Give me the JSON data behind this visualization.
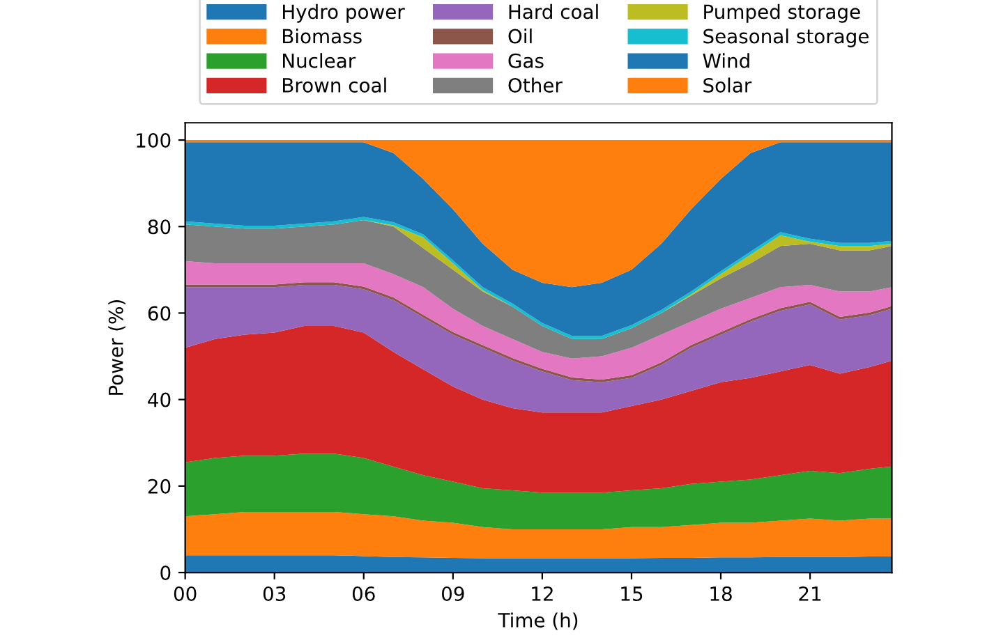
{
  "chart_data": {
    "type": "area",
    "stacked": true,
    "xlabel": "Time (h)",
    "ylabel": "Power (%)",
    "x": [
      0,
      1,
      2,
      3,
      4,
      5,
      6,
      7,
      8,
      9,
      10,
      11,
      12,
      13,
      14,
      15,
      16,
      17,
      18,
      19,
      20,
      21,
      22,
      23,
      23.75
    ],
    "xlim": [
      0,
      23.75
    ],
    "ylim": [
      0,
      104
    ],
    "xticks": [
      {
        "value": 0,
        "label": "00"
      },
      {
        "value": 3,
        "label": "03"
      },
      {
        "value": 6,
        "label": "06"
      },
      {
        "value": 9,
        "label": "09"
      },
      {
        "value": 12,
        "label": "12"
      },
      {
        "value": 15,
        "label": "15"
      },
      {
        "value": 18,
        "label": "18"
      },
      {
        "value": 21,
        "label": "21"
      }
    ],
    "yticks": [
      0,
      20,
      40,
      60,
      80,
      100
    ],
    "legend": "top",
    "grid": false,
    "series": [
      {
        "name": "Hydro power",
        "color": "#1f77b4",
        "values": [
          4,
          4,
          4,
          4,
          4,
          4,
          3.8,
          3.6,
          3.5,
          3.4,
          3.3,
          3.3,
          3.3,
          3.3,
          3.3,
          3.3,
          3.4,
          3.4,
          3.5,
          3.5,
          3.6,
          3.6,
          3.6,
          3.7,
          3.7
        ]
      },
      {
        "name": "Biomass",
        "color": "#ff7f0e",
        "values": [
          9,
          9.5,
          10,
          10,
          10,
          10,
          9.7,
          9.4,
          8.5,
          8.1,
          7.2,
          6.7,
          6.7,
          6.7,
          6.7,
          7.2,
          7.1,
          7.6,
          8,
          8,
          8.4,
          8.9,
          8.4,
          8.8,
          8.8
        ]
      },
      {
        "name": "Nuclear",
        "color": "#2ca02c",
        "values": [
          12.5,
          13,
          13,
          13,
          13.5,
          13.5,
          13,
          11.5,
          10.5,
          9.5,
          9,
          9,
          8.5,
          8.5,
          8.5,
          8.5,
          9,
          9.5,
          9.5,
          10,
          10.5,
          11,
          11,
          11.5,
          12
        ]
      },
      {
        "name": "Brown coal",
        "color": "#d62728",
        "values": [
          26.5,
          27.5,
          28,
          28.5,
          29.5,
          29.5,
          29,
          26.5,
          24.5,
          22,
          20.5,
          19,
          18.5,
          18.5,
          18.5,
          19.5,
          20.5,
          21.5,
          23,
          23.5,
          24,
          24.5,
          23,
          23.5,
          24.5
        ]
      },
      {
        "name": "Hard coal",
        "color": "#9467bd",
        "values": [
          14,
          12,
          11,
          10.5,
          9.5,
          9.5,
          10,
          12,
          12,
          12,
          12,
          11,
          9.5,
          7.5,
          7,
          6.5,
          8,
          10,
          11,
          13,
          14,
          14,
          12.5,
          12,
          12
        ]
      },
      {
        "name": "Oil",
        "color": "#8c564b",
        "values": [
          0.6,
          0.6,
          0.6,
          0.6,
          0.6,
          0.6,
          0.6,
          0.6,
          0.6,
          0.6,
          0.6,
          0.6,
          0.6,
          0.6,
          0.6,
          0.6,
          0.6,
          0.6,
          0.6,
          0.6,
          0.6,
          0.6,
          0.6,
          0.6,
          0.6
        ]
      },
      {
        "name": "Gas",
        "color": "#e377c2",
        "values": [
          5.4,
          4.9,
          4.9,
          4.9,
          4.4,
          4.4,
          5.4,
          5.4,
          6.4,
          5.4,
          4.4,
          4.4,
          3.9,
          4.4,
          5.4,
          6.4,
          6.4,
          5.4,
          5.4,
          4.9,
          4.9,
          3.9,
          5.9,
          4.9,
          4.4
        ]
      },
      {
        "name": "Other",
        "color": "#7f7f7f",
        "values": [
          8.5,
          8.5,
          8,
          8,
          8.5,
          9,
          10,
          11,
          9,
          9,
          8,
          7.5,
          6,
          4.5,
          4,
          4.5,
          5,
          6,
          7,
          8,
          9.5,
          9.5,
          9.5,
          9.5,
          9.5
        ]
      },
      {
        "name": "Pumped storage",
        "color": "#bcbd22",
        "values": [
          0,
          0,
          0,
          0,
          0,
          0,
          0,
          0.3,
          2.5,
          1.5,
          0.3,
          0,
          0,
          0,
          0,
          0,
          0,
          0.3,
          1,
          2,
          2.5,
          0.5,
          1,
          1,
          0.5
        ]
      },
      {
        "name": "Seasonal storage",
        "color": "#17becf",
        "values": [
          0.7,
          0.7,
          0.7,
          0.7,
          0.7,
          0.7,
          0.7,
          0.7,
          0.7,
          0.7,
          0.7,
          0.7,
          0.7,
          0.7,
          0.7,
          0.7,
          0.7,
          0.7,
          0.7,
          0.7,
          0.7,
          0.7,
          0.7,
          0.7,
          0.7
        ]
      },
      {
        "name": "Wind",
        "color": "#1f77b4",
        "values": [
          18.3,
          18.8,
          19.3,
          19.3,
          18.8,
          18.3,
          17.3,
          16,
          12.8,
          11.8,
          10,
          7.8,
          9.3,
          11.3,
          12.3,
          12.8,
          15.3,
          19,
          21.3,
          22.8,
          20.8,
          22.3,
          23.3,
          23.3,
          22.8
        ]
      },
      {
        "name": "Solar",
        "color": "#ff7f0e",
        "values": [
          0.5,
          0.5,
          0.5,
          0.5,
          0.5,
          0.5,
          0.5,
          3,
          9,
          16,
          24,
          30,
          33,
          34,
          33,
          30,
          24,
          16,
          9,
          3,
          0.5,
          0.5,
          0.5,
          0.5,
          0.5
        ]
      }
    ]
  }
}
